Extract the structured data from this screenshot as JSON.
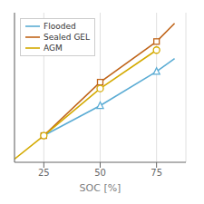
{
  "chart_data": {
    "type": "line",
    "xlabel": "SOC [%]",
    "xlim": [
      12,
      88
    ],
    "ylim": [
      11.55,
      12.95
    ],
    "xticks": [
      25,
      50,
      75
    ],
    "yticks": [],
    "tick_labels": "x",
    "grid": true,
    "legend": "upper left",
    "series": [
      {
        "name": "Flooded",
        "color": "#5bacd4",
        "x": [
          25,
          50,
          75,
          83
        ],
        "values": [
          11.8,
          12.08,
          12.4,
          12.52
        ],
        "marker": "triangle",
        "marker_at": [
          50,
          75
        ]
      },
      {
        "name": "Sealed GEL",
        "color": "#c0651a",
        "x": [
          25,
          50,
          75,
          83
        ],
        "values": [
          11.8,
          12.3,
          12.68,
          12.85
        ],
        "marker": "square",
        "marker_at": [
          25,
          50,
          75
        ]
      },
      {
        "name": "AGM",
        "color": "#d4aa00",
        "x": [
          12,
          25,
          50,
          75
        ],
        "values": [
          11.58,
          11.8,
          12.24,
          12.6
        ],
        "marker": "circle",
        "marker_at": [
          25,
          50,
          75
        ]
      }
    ]
  }
}
